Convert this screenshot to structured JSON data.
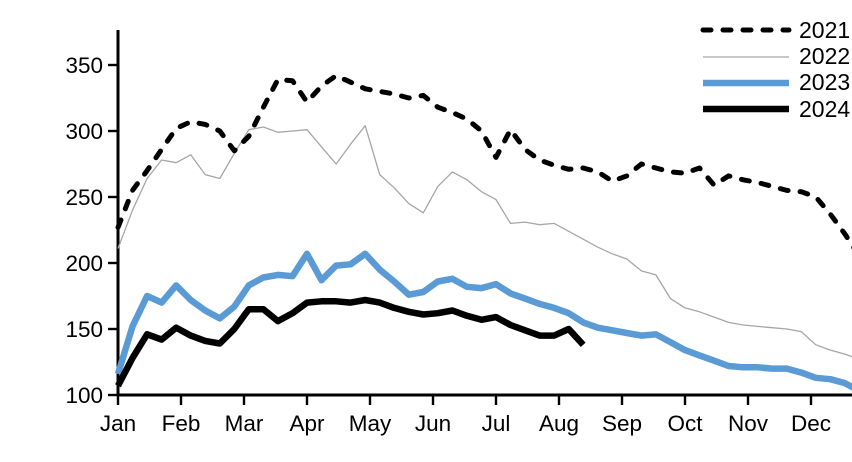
{
  "chart_data": {
    "type": "line",
    "title": "",
    "x_unit": "weekly observations, January through December",
    "x_axis": {
      "tick_labels": [
        "Jan",
        "Feb",
        "Mar",
        "Apr",
        "May",
        "Jun",
        "Jul",
        "Aug",
        "Sep",
        "Oct",
        "Nov",
        "Dec"
      ]
    },
    "y_axis": {
      "min": 100,
      "max": 350,
      "tick_step": 50,
      "ticks": [
        100,
        150,
        200,
        250,
        300,
        350
      ]
    },
    "grid": "off",
    "legend_position": "top-right",
    "series": [
      {
        "name": "2021",
        "color": "#000000",
        "style": "dashed",
        "stroke_width": 5,
        "values": [
          227,
          255,
          270,
          286,
          302,
          307,
          305,
          300,
          285,
          296,
          318,
          339,
          338,
          322,
          334,
          342,
          337,
          332,
          330,
          328,
          325,
          327,
          318,
          314,
          309,
          300,
          280,
          301,
          286,
          278,
          274,
          271,
          272,
          269,
          262,
          266,
          275,
          272,
          269,
          268,
          272,
          259,
          266,
          263,
          261,
          258,
          255,
          254,
          250,
          237,
          222,
          205,
          218
        ]
      },
      {
        "name": "2022",
        "color": "#a6a6a6",
        "style": "solid",
        "stroke_width": 1.3,
        "values": [
          211,
          240,
          264,
          278,
          276,
          282,
          267,
          264,
          283,
          301,
          303,
          299,
          300,
          301,
          288,
          275,
          290,
          304,
          267,
          257,
          245,
          238,
          258,
          269,
          263,
          254,
          248,
          230,
          231,
          229,
          230,
          224,
          218,
          212,
          207,
          203,
          194,
          191,
          173,
          166,
          163,
          159,
          155,
          153,
          152,
          151,
          150,
          148,
          138,
          134,
          131,
          127,
          115
        ]
      },
      {
        "name": "2023",
        "color": "#5b9bd5",
        "style": "solid",
        "stroke_width": 6.5,
        "values": [
          116,
          152,
          175,
          170,
          183,
          172,
          164,
          158,
          167,
          183,
          189,
          191,
          190,
          207,
          187,
          198,
          199,
          207,
          195,
          186,
          176,
          178,
          186,
          188,
          182,
          181,
          184,
          177,
          173,
          169,
          166,
          162,
          155,
          151,
          149,
          147,
          145,
          146,
          140,
          134,
          130,
          126,
          122,
          121,
          121,
          120,
          120,
          117,
          113,
          112,
          109,
          103,
          100
        ]
      },
      {
        "name": "2024",
        "color": "#000000",
        "style": "solid",
        "stroke_width": 6.5,
        "values": [
          107,
          128,
          146,
          142,
          151,
          145,
          141,
          139,
          150,
          165,
          165,
          156,
          162,
          170,
          171,
          171,
          170,
          172,
          170,
          166,
          163,
          161,
          162,
          164,
          160,
          157,
          159,
          153,
          149,
          145,
          145,
          150,
          138
        ]
      }
    ]
  }
}
